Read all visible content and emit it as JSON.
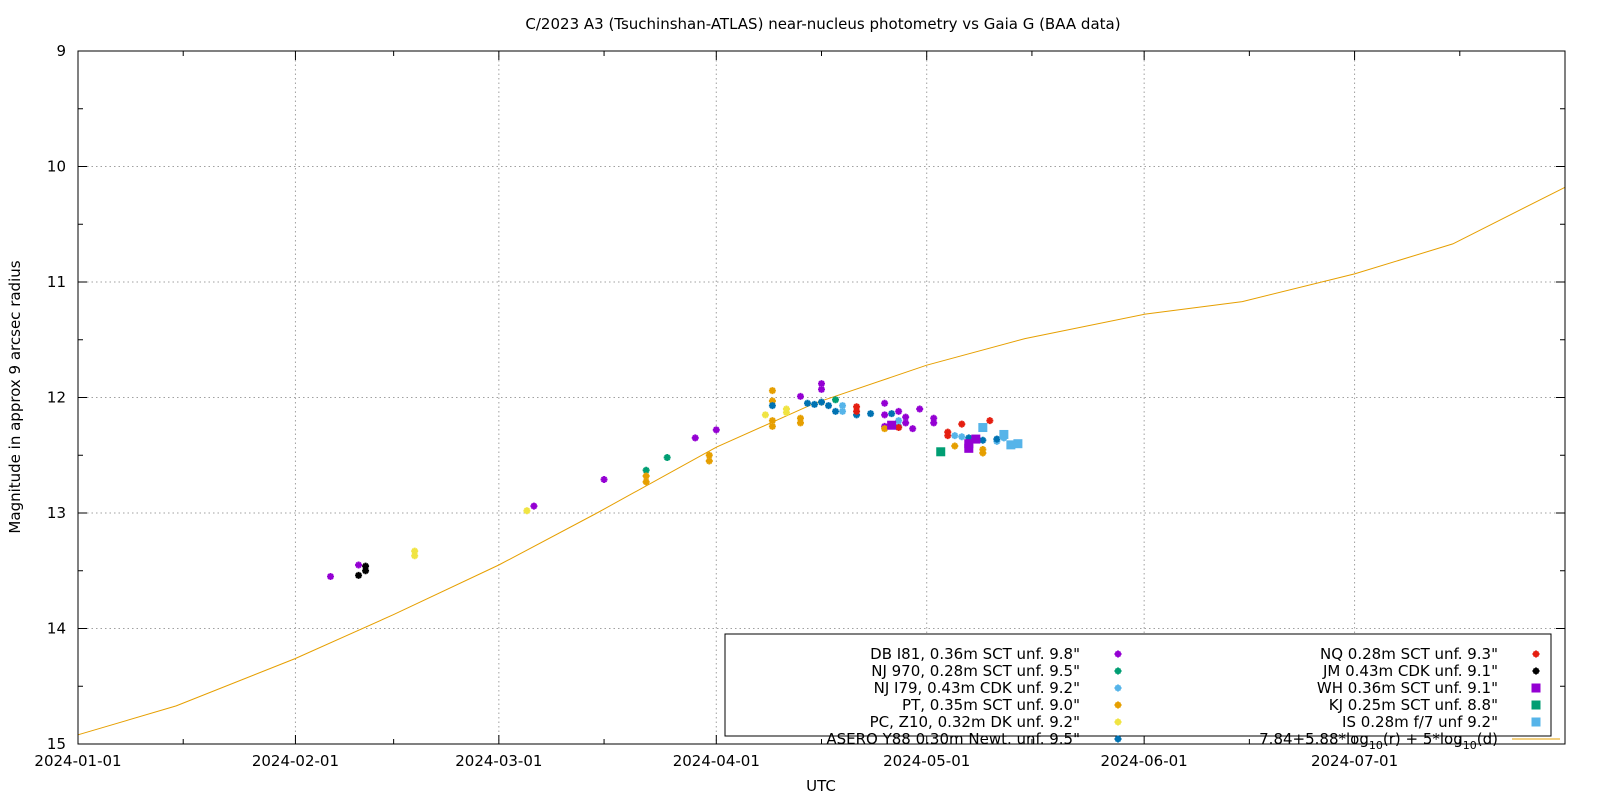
{
  "chart_data": {
    "type": "scatter",
    "title": "C/2023 A3 (Tsuchinshan-ATLAS) near-nucleus photometry vs Gaia G (BAA data)",
    "xlabel": "UTC",
    "ylabel": "Magnitude in approx 9 arcsec radius",
    "xlim": [
      "2024-01-01",
      "2024-07-31"
    ],
    "ylim": [
      15,
      9
    ],
    "y_inverted": true,
    "grid": true,
    "legend_position": "bottom-right",
    "x_ticks": [
      "2024-01-01",
      "2024-02-01",
      "2024-03-01",
      "2024-04-01",
      "2024-05-01",
      "2024-06-01",
      "2024-07-01"
    ],
    "y_ticks": [
      "9",
      "10",
      "11",
      "12",
      "13",
      "14",
      "15"
    ],
    "series": [
      {
        "name": "DB I81, 0.36m SCT unf. 9.8\"",
        "color": "#9400d3",
        "marker": "star",
        "points": [
          [
            "2024-02-06",
            13.55
          ],
          [
            "2024-02-10",
            13.45
          ],
          [
            "2024-03-06",
            12.94
          ],
          [
            "2024-03-16",
            12.71
          ],
          [
            "2024-03-29",
            12.35
          ],
          [
            "2024-04-01",
            12.28
          ],
          [
            "2024-04-13",
            11.99
          ],
          [
            "2024-04-16",
            11.93
          ],
          [
            "2024-04-16",
            11.88
          ],
          [
            "2024-04-25",
            12.25
          ],
          [
            "2024-04-25",
            12.05
          ],
          [
            "2024-04-25",
            12.15
          ],
          [
            "2024-04-27",
            12.12
          ],
          [
            "2024-04-28",
            12.22
          ],
          [
            "2024-04-28",
            12.17
          ],
          [
            "2024-04-29",
            12.27
          ],
          [
            "2024-04-30",
            12.1
          ],
          [
            "2024-05-02",
            12.18
          ],
          [
            "2024-05-02",
            12.22
          ]
        ]
      },
      {
        "name": "NJ 970, 0.28m SCT unf. 9.5\"",
        "color": "#009e73",
        "marker": "star",
        "points": [
          [
            "2024-03-22",
            12.63
          ],
          [
            "2024-03-25",
            12.52
          ],
          [
            "2024-04-18",
            12.02
          ]
        ]
      },
      {
        "name": "NJ I79, 0.43m CDK unf. 9.2\"",
        "color": "#56b4e9",
        "marker": "star",
        "points": [
          [
            "2024-04-19",
            12.07
          ],
          [
            "2024-04-19",
            12.12
          ],
          [
            "2024-04-27",
            12.2
          ],
          [
            "2024-04-27",
            12.25
          ],
          [
            "2024-05-05",
            12.33
          ],
          [
            "2024-05-06",
            12.34
          ],
          [
            "2024-05-11",
            12.38
          ],
          [
            "2024-05-12",
            12.35
          ]
        ]
      },
      {
        "name": "PT, 0.35m SCT unf. 9.0\"",
        "color": "#e69f00",
        "marker": "star",
        "points": [
          [
            "2024-03-22",
            12.68
          ],
          [
            "2024-03-22",
            12.73
          ],
          [
            "2024-03-31",
            12.5
          ],
          [
            "2024-03-31",
            12.55
          ],
          [
            "2024-04-09",
            11.94
          ],
          [
            "2024-04-09",
            12.03
          ],
          [
            "2024-04-09",
            12.2
          ],
          [
            "2024-04-09",
            12.25
          ],
          [
            "2024-04-13",
            12.18
          ],
          [
            "2024-04-13",
            12.22
          ],
          [
            "2024-04-16",
            12.04
          ],
          [
            "2024-04-25",
            12.27
          ],
          [
            "2024-05-05",
            12.42
          ],
          [
            "2024-05-09",
            12.45
          ],
          [
            "2024-05-09",
            12.48
          ]
        ]
      },
      {
        "name": "PC, Z10, 0.32m DK unf. 9.2\"",
        "color": "#f0e442",
        "marker": "star",
        "points": [
          [
            "2024-02-18",
            13.33
          ],
          [
            "2024-02-18",
            13.37
          ],
          [
            "2024-03-05",
            12.98
          ],
          [
            "2024-04-08",
            12.15
          ],
          [
            "2024-04-11",
            12.1
          ],
          [
            "2024-04-11",
            12.13
          ]
        ]
      },
      {
        "name": "ASERO Y88 0.30m Newt. unf. 9.5\"",
        "color": "#0072b2",
        "marker": "star",
        "points": [
          [
            "2024-04-09",
            12.07
          ],
          [
            "2024-04-14",
            12.05
          ],
          [
            "2024-04-15",
            12.06
          ],
          [
            "2024-04-16",
            12.04
          ],
          [
            "2024-04-17",
            12.07
          ],
          [
            "2024-04-18",
            12.12
          ],
          [
            "2024-04-21",
            12.15
          ],
          [
            "2024-04-23",
            12.14
          ],
          [
            "2024-04-26",
            12.14
          ],
          [
            "2024-05-07",
            12.35
          ],
          [
            "2024-05-09",
            12.37
          ],
          [
            "2024-05-11",
            12.36
          ]
        ]
      },
      {
        "name": "NQ 0.28m SCT unf. 9.3\"",
        "color": "#e51e10",
        "marker": "star",
        "points": [
          [
            "2024-04-21",
            12.08
          ],
          [
            "2024-04-21",
            12.12
          ],
          [
            "2024-04-27",
            12.26
          ],
          [
            "2024-05-04",
            12.3
          ],
          [
            "2024-05-04",
            12.33
          ],
          [
            "2024-05-06",
            12.23
          ],
          [
            "2024-05-10",
            12.2
          ]
        ]
      },
      {
        "name": "JM 0.43m CDK unf. 9.1\"",
        "color": "#000000",
        "marker": "star",
        "points": [
          [
            "2024-02-10",
            13.54
          ],
          [
            "2024-02-11",
            13.5
          ],
          [
            "2024-02-11",
            13.46
          ]
        ]
      },
      {
        "name": "WH 0.36m SCT  unf. 9.1\"",
        "color": "#9400d3",
        "marker": "square",
        "points": [
          [
            "2024-04-26",
            12.24
          ],
          [
            "2024-05-07",
            12.4
          ],
          [
            "2024-05-07",
            12.44
          ],
          [
            "2024-05-08",
            12.36
          ]
        ]
      },
      {
        "name": "KJ 0.25m SCT  unf. 8.8\"",
        "color": "#009e73",
        "marker": "square",
        "points": [
          [
            "2024-05-03",
            12.47
          ]
        ]
      },
      {
        "name": "IS 0.28m f/7 unf 9.2\"",
        "color": "#56b4e9",
        "marker": "square",
        "points": [
          [
            "2024-05-09",
            12.26
          ],
          [
            "2024-05-12",
            12.32
          ],
          [
            "2024-05-13",
            12.41
          ],
          [
            "2024-05-14",
            12.4
          ]
        ]
      }
    ],
    "model": {
      "name": "7.84+5.88*log10(r) + 5*log10(d)",
      "label_parts": [
        "7.84+5.88*log",
        "10",
        "(r) + 5*log",
        "10",
        "(d)"
      ],
      "color": "#e69f00",
      "points": [
        [
          "2024-01-01",
          14.92
        ],
        [
          "2024-01-15",
          14.67
        ],
        [
          "2024-02-01",
          14.26
        ],
        [
          "2024-02-15",
          13.88
        ],
        [
          "2024-03-01",
          13.45
        ],
        [
          "2024-03-15",
          13.0
        ],
        [
          "2024-04-01",
          12.43
        ],
        [
          "2024-04-15",
          12.05
        ],
        [
          "2024-05-01",
          11.72
        ],
        [
          "2024-05-15",
          11.49
        ],
        [
          "2024-06-01",
          11.28
        ],
        [
          "2024-06-15",
          11.17
        ],
        [
          "2024-07-01",
          10.93
        ],
        [
          "2024-07-15",
          10.67
        ],
        [
          "2024-07-31",
          10.18
        ]
      ]
    }
  }
}
